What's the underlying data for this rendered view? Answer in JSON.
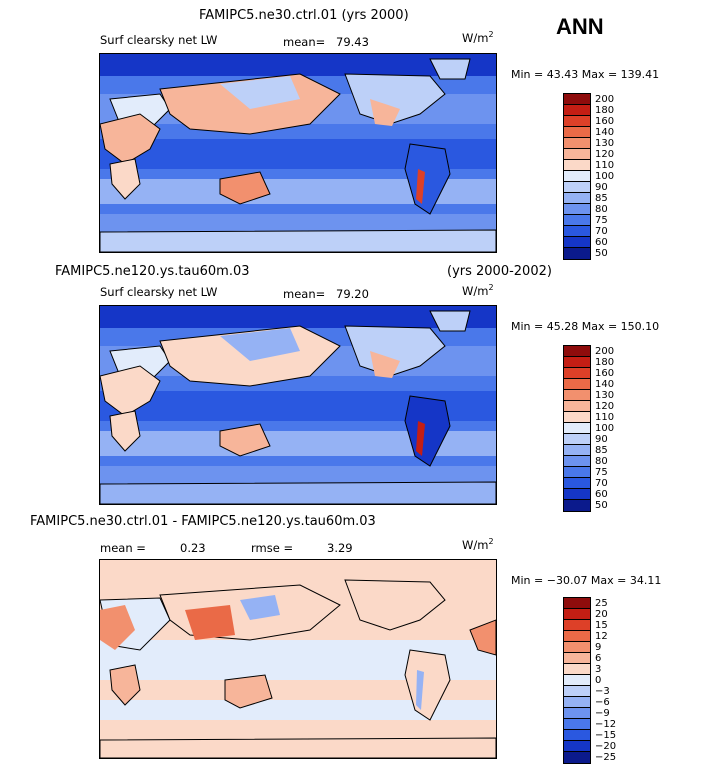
{
  "season": "ANN",
  "colors": {
    "abs_levels": [
      "#0b1a8c",
      "#1536c7",
      "#2a58e0",
      "#4a78ea",
      "#6d93ef",
      "#95b2f4",
      "#bdd0f8",
      "#e2ecfb",
      "#fbd9c8",
      "#f7b59a",
      "#f2906e",
      "#ea6a47",
      "#dd4028",
      "#c41e14",
      "#8e0c0c"
    ],
    "diff_levels": [
      "#0b1a8c",
      "#1536c7",
      "#2a58e0",
      "#4a78ea",
      "#6d93ef",
      "#95b2f4",
      "#bdd0f8",
      "#e2ecfb",
      "#fbd9c8",
      "#f7b59a",
      "#f2906e",
      "#ea6a47",
      "#dd4028",
      "#c41e14",
      "#8e0c0c"
    ]
  },
  "panels": [
    {
      "title_left": "FAMIPC5.ne30.ctrl.01 (yrs 2000)",
      "title_right": "",
      "field": "Surf clearsky net LW",
      "mean_label": "mean=",
      "mean_value": "79.43",
      "rmse_label": "",
      "rmse_value": "",
      "units": "W/m",
      "units_sup": "2",
      "minmax": "Min =   43.43  Max =  139.41",
      "colorbar": [
        "200",
        "180",
        "160",
        "140",
        "130",
        "120",
        "110",
        "100",
        "90",
        "85",
        "80",
        "75",
        "70",
        "60",
        "50"
      ]
    },
    {
      "title_left": "FAMIPC5.ne120.ys.tau60m.03",
      "title_right": "(yrs 2000-2002)",
      "field": "Surf clearsky net LW",
      "mean_label": "mean=",
      "mean_value": "79.20",
      "rmse_label": "",
      "rmse_value": "",
      "units": "W/m",
      "units_sup": "2",
      "minmax": "Min =   45.28  Max =  150.10",
      "colorbar": [
        "200",
        "180",
        "160",
        "140",
        "130",
        "120",
        "110",
        "100",
        "90",
        "85",
        "80",
        "75",
        "70",
        "60",
        "50"
      ]
    },
    {
      "title_left": "FAMIPC5.ne30.ctrl.01 - FAMIPC5.ne120.ys.tau60m.03",
      "title_right": "",
      "field": "",
      "mean_label": "mean =",
      "mean_value": "0.23",
      "rmse_label": "rmse =",
      "rmse_value": "3.29",
      "units": "W/m",
      "units_sup": "2",
      "minmax": "Min = −30.07  Max =   34.11",
      "colorbar": [
        "25",
        "20",
        "15",
        "12",
        "9",
        "6",
        "3",
        "0",
        "−3",
        "−6",
        "−9",
        "−12",
        "−15",
        "−20",
        "−25"
      ]
    }
  ],
  "chart_data": [
    {
      "type": "heatmap",
      "title": "FAMIPC5.ne30.ctrl.01 (yrs 2000)",
      "variable": "Surf clearsky net LW",
      "units": "W/m2",
      "mean": 79.43,
      "min": 43.43,
      "max": 139.41,
      "levels": [
        50,
        60,
        70,
        75,
        80,
        85,
        90,
        100,
        110,
        120,
        130,
        140,
        160,
        180,
        200
      ]
    },
    {
      "type": "heatmap",
      "title": "FAMIPC5.ne120.ys.tau60m.03 (yrs 2000-2002)",
      "variable": "Surf clearsky net LW",
      "units": "W/m2",
      "mean": 79.2,
      "min": 45.28,
      "max": 150.1,
      "levels": [
        50,
        60,
        70,
        75,
        80,
        85,
        90,
        100,
        110,
        120,
        130,
        140,
        160,
        180,
        200
      ]
    },
    {
      "type": "heatmap",
      "title": "FAMIPC5.ne30.ctrl.01 - FAMIPC5.ne120.ys.tau60m.03",
      "units": "W/m2",
      "mean": 0.23,
      "rmse": 3.29,
      "min": -30.07,
      "max": 34.11,
      "levels": [
        -25,
        -20,
        -15,
        -12,
        -9,
        -6,
        -3,
        0,
        3,
        6,
        9,
        12,
        15,
        20,
        25
      ]
    }
  ]
}
